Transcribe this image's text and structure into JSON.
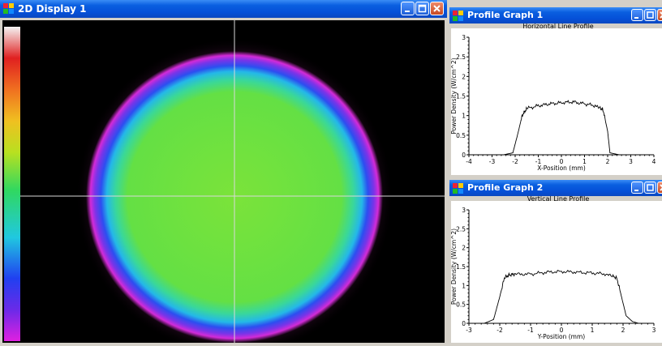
{
  "display": {
    "title": "2D Display 1"
  },
  "profile1": {
    "title": "Profile Graph 1",
    "chart_data": {
      "type": "line",
      "title": "Horizontal Line Profile",
      "xlabel": "X-Position (mm)",
      "ylabel": "Power Density (W/cm^2)",
      "xlim": [
        -4,
        4
      ],
      "ylim": [
        0,
        3
      ],
      "xticks": [
        "-4",
        "-3",
        "-2",
        "-1",
        "0",
        "1",
        "2",
        "3",
        "4"
      ],
      "yticks": [
        "0",
        "0.5",
        "1",
        "1.5",
        "2",
        "2.5",
        "3"
      ],
      "x": [
        -4,
        -3.5,
        -3,
        -2.5,
        -2.1,
        -1.9,
        -1.7,
        -1.5,
        -1,
        -0.5,
        0,
        0.5,
        1,
        1.5,
        1.8,
        2,
        2.1,
        2.5,
        3,
        3.5,
        4
      ],
      "y": [
        0,
        0,
        0,
        0,
        0.05,
        0.5,
        1.0,
        1.18,
        1.25,
        1.3,
        1.33,
        1.35,
        1.3,
        1.25,
        1.15,
        0.6,
        0.05,
        0,
        0,
        0,
        0
      ]
    }
  },
  "profile2": {
    "title": "Profile Graph 2",
    "chart_data": {
      "type": "line",
      "title": "Vertical Line Profile",
      "xlabel": "Y-Position (mm)",
      "ylabel": "Power Density (W/cm^2)",
      "xlim": [
        -3,
        3
      ],
      "ylim": [
        0,
        3
      ],
      "xticks": [
        "-3",
        "-2",
        "-1",
        "0",
        "1",
        "2",
        "3"
      ],
      "yticks": [
        "0",
        "0.5",
        "1",
        "1.5",
        "2",
        "2.5",
        "3"
      ],
      "x": [
        -3,
        -2.5,
        -2.2,
        -2,
        -1.85,
        -1.7,
        -1.5,
        -1,
        -0.5,
        0,
        0.5,
        1,
        1.5,
        1.8,
        1.95,
        2.1,
        2.3,
        2.5,
        3
      ],
      "y": [
        0,
        0,
        0.1,
        0.7,
        1.2,
        1.28,
        1.3,
        1.3,
        1.35,
        1.37,
        1.35,
        1.33,
        1.3,
        1.2,
        0.7,
        0.2,
        0.05,
        0,
        0
      ]
    }
  },
  "colors": {
    "titlebar": "#0550d8",
    "beam_center": "#7be33a",
    "beam_edge": "#d22bd8",
    "background": "#000000"
  }
}
